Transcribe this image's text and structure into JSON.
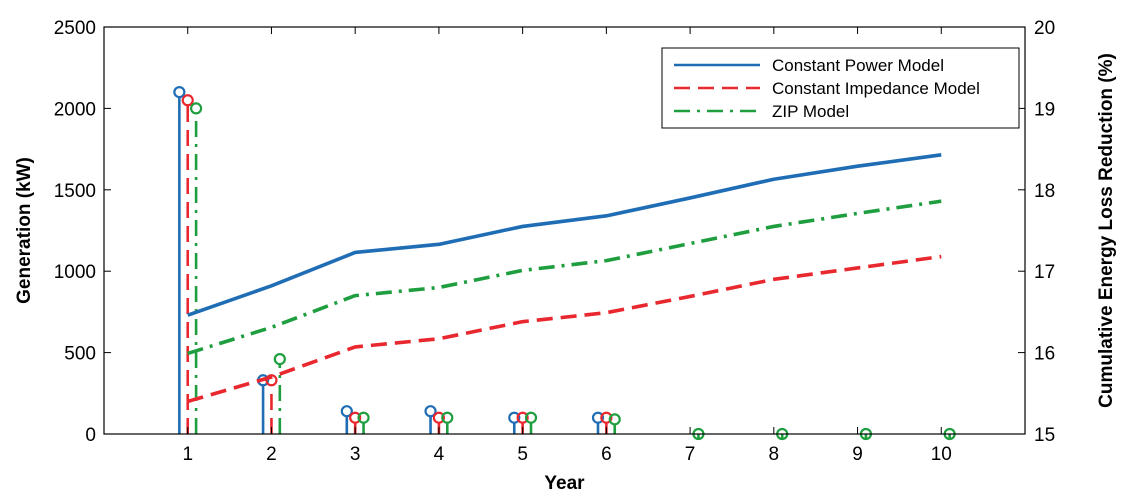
{
  "chart_data": {
    "type": "line+stem",
    "xlabel": "Year",
    "ylabel_left": "Generation (kW)",
    "ylabel_right": "Cumulative Energy Loss Reduction (%)",
    "x_ticks": [
      "1",
      "2",
      "3",
      "4",
      "5",
      "6",
      "7",
      "8",
      "9",
      "10"
    ],
    "xlim": [
      0,
      11
    ],
    "ylim_left": [
      0,
      2500
    ],
    "ylim_right": [
      15,
      20
    ],
    "yticks_left": [
      "0",
      "500",
      "1000",
      "1500",
      "2000",
      "2500"
    ],
    "yticks_right": [
      "15",
      "16",
      "17",
      "18",
      "19",
      "20"
    ],
    "legend_position": "top-right",
    "series": [
      {
        "name": "Constant Power Model",
        "color": "#1f6db5",
        "dash": "solid",
        "line_x": [
          1,
          2,
          3,
          4,
          5,
          6,
          7,
          8,
          9,
          10
        ],
        "line_y_right": [
          16.46,
          16.82,
          17.23,
          17.33,
          17.55,
          17.68,
          17.9,
          18.13,
          18.29,
          18.43
        ],
        "stem_x": [
          1,
          2,
          3,
          4,
          5,
          6
        ],
        "stem_y_left": [
          2100,
          330,
          140,
          140,
          100,
          100
        ],
        "stem_offset": -0.1
      },
      {
        "name": "Constant Impedance Model",
        "color": "#e8282e",
        "dash": "dashed",
        "line_x": [
          1,
          2,
          3,
          4,
          5,
          6,
          7,
          8,
          9,
          10
        ],
        "line_y_right": [
          15.4,
          15.7,
          16.07,
          16.17,
          16.38,
          16.49,
          16.69,
          16.9,
          17.04,
          17.18
        ],
        "stem_x": [
          1,
          2,
          3,
          4,
          5,
          6
        ],
        "stem_y_left": [
          2050,
          330,
          100,
          100,
          100,
          100
        ],
        "stem_offset": 0
      },
      {
        "name": "ZIP Model",
        "color": "#1f9e3f",
        "dash": "dashdot",
        "line_x": [
          1,
          2,
          3,
          4,
          5,
          6,
          7,
          8,
          9,
          10
        ],
        "line_y_right": [
          15.99,
          16.31,
          16.7,
          16.8,
          17.01,
          17.13,
          17.34,
          17.55,
          17.71,
          17.86
        ],
        "stem_x": [
          1,
          2,
          3,
          4,
          5,
          6,
          7,
          8,
          9,
          10
        ],
        "stem_y_left": [
          2000,
          460,
          100,
          100,
          100,
          90,
          0,
          0,
          0,
          0
        ],
        "stem_offset": 0.1
      }
    ]
  }
}
